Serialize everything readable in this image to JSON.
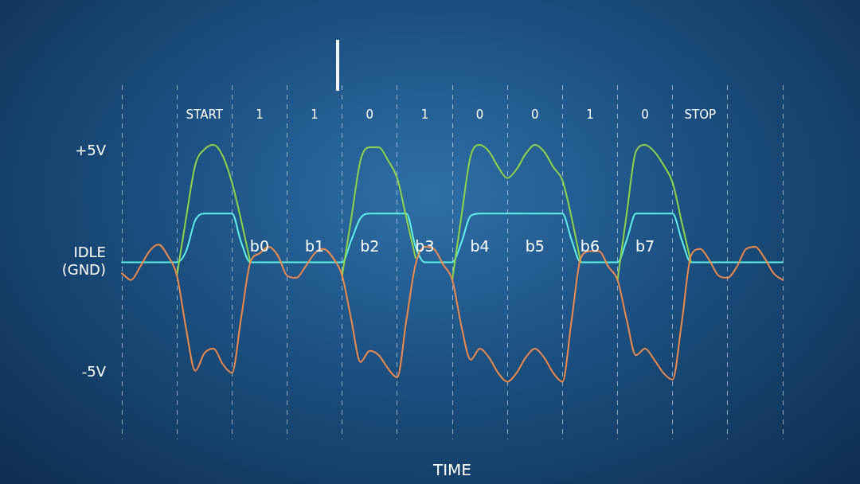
{
  "chart_data": {
    "type": "line",
    "xlabel": "TIME",
    "categories": [
      null,
      null,
      null,
      null,
      null,
      null,
      null,
      null,
      null,
      null,
      null,
      null,
      null,
      null,
      null,
      null,
      null,
      null,
      null,
      null,
      null,
      null,
      null,
      null,
      null,
      null,
      null,
      null,
      null,
      null,
      null,
      null,
      null,
      null,
      null,
      null,
      null,
      null,
      null,
      null,
      null,
      null,
      null,
      null,
      null,
      null,
      null,
      null,
      null,
      null,
      null,
      null,
      null,
      null,
      null,
      null,
      null,
      null,
      null,
      null,
      null,
      null,
      null,
      null,
      null,
      null,
      null,
      null,
      null,
      null,
      null,
      null,
      null
    ],
    "ylim": [
      -8,
      8
    ],
    "yticks": [
      {
        "value": 5,
        "label": "+5V"
      },
      {
        "value": 0,
        "label": "IDLE\n(GND)"
      },
      {
        "value": -5,
        "label": "-5V"
      }
    ],
    "tick_labels": "y",
    "grid": "x",
    "legend": false,
    "marker": "none",
    "line_style": "solid",
    "series": [
      {
        "color": "#f08a4b",
        "values": [
          -0.5,
          -0.8,
          -0.2,
          0.5,
          0.8,
          0.3,
          -0.6,
          -3.0,
          -4.9,
          -4.1,
          -3.9,
          -4.6,
          -5.0,
          -2.5,
          0.0,
          0.4,
          0.7,
          0.3,
          -0.6,
          -0.7,
          -0.2,
          0.4,
          0.6,
          0.2,
          -0.6,
          -2.6,
          -4.5,
          -4.0,
          -4.2,
          -4.8,
          -5.2,
          -2.6,
          -0.1,
          0.7,
          0.6,
          -0.1,
          -0.8,
          -2.9,
          -4.4,
          -3.9,
          -4.3,
          -5.0,
          -5.4,
          -5.0,
          -4.3,
          -3.9,
          -4.3,
          -5.0,
          -5.4,
          -2.6,
          0.2,
          0.5,
          0.5,
          -0.2,
          -0.8,
          -2.6,
          -4.2,
          -3.9,
          -4.4,
          -5.0,
          -5.3,
          -2.7,
          0.3,
          0.6,
          0.1,
          -0.6,
          -0.7,
          -0.2,
          0.6,
          0.7,
          0.2,
          -0.5,
          -0.8
        ]
      },
      {
        "color": "#8fd44a",
        "values": [
          null,
          null,
          null,
          null,
          null,
          null,
          -0.6,
          2.0,
          4.4,
          5.1,
          5.3,
          4.8,
          3.6,
          1.9,
          0.0,
          null,
          null,
          null,
          null,
          null,
          null,
          null,
          null,
          null,
          -0.6,
          2.0,
          4.6,
          5.2,
          5.2,
          4.6,
          3.8,
          2.0,
          0.2,
          null,
          null,
          null,
          -0.8,
          2.1,
          4.8,
          5.3,
          5.0,
          4.3,
          3.8,
          4.2,
          4.9,
          5.3,
          5.0,
          4.3,
          3.7,
          2.0,
          0.0,
          null,
          null,
          null,
          -0.8,
          2.2,
          5.0,
          5.3,
          5.0,
          4.4,
          3.6,
          1.8,
          0.0,
          null,
          null,
          null,
          null,
          null,
          null,
          null,
          null,
          null,
          null
        ]
      },
      {
        "color": "#5ff0e8",
        "values": [
          0,
          0,
          0,
          0,
          0,
          0,
          0,
          0.5,
          1.9,
          2.2,
          2.2,
          2.2,
          2.2,
          0.9,
          0,
          0,
          0,
          0,
          0,
          0,
          0,
          0,
          0,
          0,
          0,
          1.0,
          2.0,
          2.2,
          2.2,
          2.2,
          2.2,
          2.2,
          0.7,
          0,
          0,
          0,
          0,
          0.9,
          2.1,
          2.2,
          2.2,
          2.2,
          2.2,
          2.2,
          2.2,
          2.2,
          2.2,
          2.2,
          2.2,
          1.0,
          0,
          0,
          0,
          0,
          0,
          1.0,
          2.2,
          2.2,
          2.2,
          2.2,
          2.2,
          1.0,
          0,
          0,
          0,
          0,
          0,
          0,
          0,
          0,
          0,
          0,
          0
        ]
      }
    ],
    "annotations": [
      "START",
      "1",
      "1",
      "0",
      "1",
      "0",
      "0",
      "1",
      "0",
      "STOP",
      "b0",
      "b1",
      "b2",
      "b3",
      "b4",
      "b5",
      "b6",
      "b7"
    ]
  }
}
